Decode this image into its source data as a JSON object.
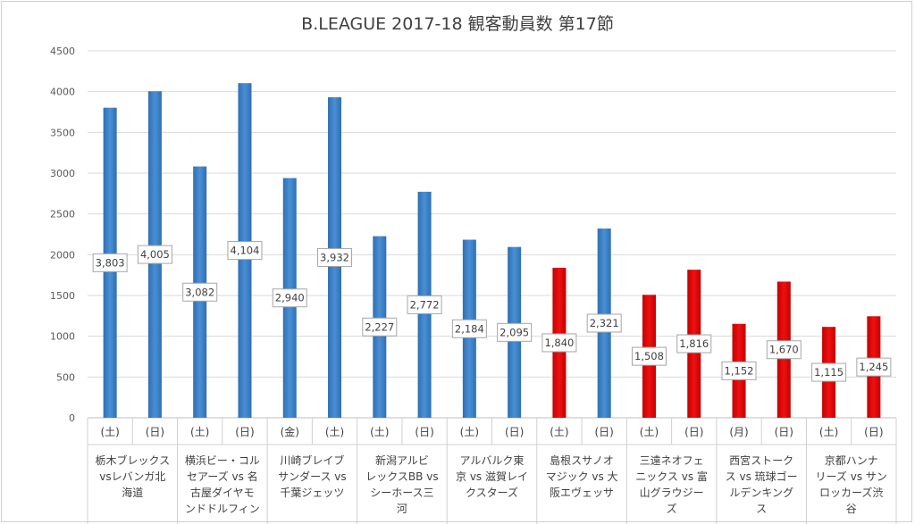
{
  "chart_data": {
    "type": "bar",
    "title": "B.LEAGUE 2017-18 観客動員数 第17節",
    "ylim": [
      0,
      4500
    ],
    "yticks": [
      0,
      500,
      1000,
      1500,
      2000,
      2500,
      3000,
      3500,
      4000,
      4500
    ],
    "grid": true,
    "colors": {
      "blue": "#4a8fd4",
      "red": "#ee1111"
    },
    "groups": [
      {
        "label_lines": [
          "栃木ブレックス",
          "vsレバンガ北",
          "海道"
        ],
        "bars": [
          {
            "day": "(土)",
            "value": 3803,
            "label": "3,803",
            "color": "blue"
          },
          {
            "day": "(日)",
            "value": 4005,
            "label": "4,005",
            "color": "blue"
          }
        ]
      },
      {
        "label_lines": [
          "横浜ビー・コル",
          "セアーズ vs 名",
          "古屋ダイヤモ",
          "ンドドルフィン"
        ],
        "bars": [
          {
            "day": "(土)",
            "value": 3082,
            "label": "3,082",
            "color": "blue"
          },
          {
            "day": "(日)",
            "value": 4104,
            "label": "4,104",
            "color": "blue"
          }
        ]
      },
      {
        "label_lines": [
          "川崎ブレイブ",
          "サンダース vs",
          "千葉ジェッツ"
        ],
        "bars": [
          {
            "day": "(金)",
            "value": 2940,
            "label": "2,940",
            "color": "blue"
          },
          {
            "day": "(土)",
            "value": 3932,
            "label": "3,932",
            "color": "blue"
          }
        ]
      },
      {
        "label_lines": [
          "新潟アルビ",
          "レックスBB vs",
          "シーホース三",
          "河"
        ],
        "bars": [
          {
            "day": "(土)",
            "value": 2227,
            "label": "2,227",
            "color": "blue"
          },
          {
            "day": "(日)",
            "value": 2772,
            "label": "2,772",
            "color": "blue"
          }
        ]
      },
      {
        "label_lines": [
          "アルバルク東",
          "京 vs 滋賀レイ",
          "クスターズ"
        ],
        "bars": [
          {
            "day": "(土)",
            "value": 2184,
            "label": "2,184",
            "color": "blue"
          },
          {
            "day": "(日)",
            "value": 2095,
            "label": "2,095",
            "color": "blue"
          }
        ]
      },
      {
        "label_lines": [
          "島根スサノオ",
          "マジック vs 大",
          "阪エヴェッサ"
        ],
        "bars": [
          {
            "day": "(土)",
            "value": 1840,
            "label": "1,840",
            "color": "red"
          },
          {
            "day": "(日)",
            "value": 2321,
            "label": "2,321",
            "color": "blue"
          }
        ]
      },
      {
        "label_lines": [
          "三遠ネオフェ",
          "ニックス vs 富",
          "山グラウジー",
          "ズ"
        ],
        "bars": [
          {
            "day": "(土)",
            "value": 1508,
            "label": "1,508",
            "color": "red"
          },
          {
            "day": "(日)",
            "value": 1816,
            "label": "1,816",
            "color": "red"
          }
        ]
      },
      {
        "label_lines": [
          "西宮ストーク",
          "ス vs 琉球ゴー",
          "ルデンキング",
          "ス"
        ],
        "bars": [
          {
            "day": "(月)",
            "value": 1152,
            "label": "1,152",
            "color": "red"
          },
          {
            "day": "(日)",
            "value": 1670,
            "label": "1,670",
            "color": "red"
          }
        ]
      },
      {
        "label_lines": [
          "京都ハンナ",
          "リーズ vs サン",
          "ロッカーズ渋",
          "谷"
        ],
        "bars": [
          {
            "day": "(土)",
            "value": 1115,
            "label": "1,115",
            "color": "red"
          },
          {
            "day": "(日)",
            "value": 1245,
            "label": "1,245",
            "color": "red"
          }
        ]
      }
    ]
  }
}
